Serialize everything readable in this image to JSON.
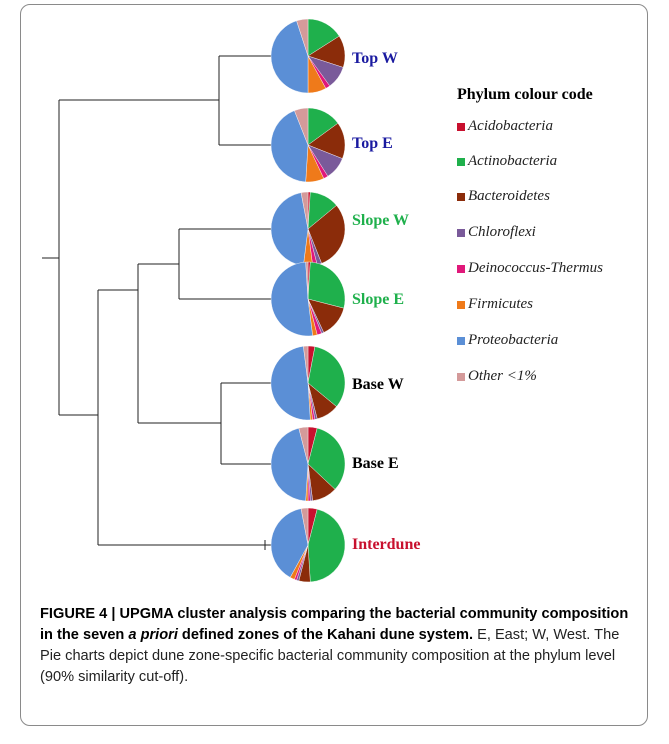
{
  "colors": {
    "Acidobacteria": "#c8102e",
    "Actinobacteria": "#1fb04c",
    "Bacteroidetes": "#8b2c0a",
    "Chloroflexi": "#7a5a9a",
    "Deinococcus-Thermus": "#e0187a",
    "Firmicutes": "#ef7a1a",
    "Proteobacteria": "#5b8fd6",
    "Other <1%": "#d49a9a"
  },
  "legend": {
    "title": "Phylum colour code",
    "items": [
      "Acidobacteria",
      "Actinobacteria",
      "Bacteroidetes",
      "Chloroflexi",
      "Deinococcus-Thermus",
      "Firmicutes",
      "Proteobacteria",
      "Other <1%"
    ]
  },
  "chart_data": {
    "type": "pie",
    "phyla": [
      "Acidobacteria",
      "Actinobacteria",
      "Bacteroidetes",
      "Chloroflexi",
      "Deinococcus-Thermus",
      "Firmicutes",
      "Proteobacteria",
      "Other <1%"
    ],
    "pies": [
      {
        "label": "Top W",
        "label_color": "#1a1aa0",
        "values": [
          0,
          16,
          14,
          10,
          2,
          8,
          45,
          5
        ]
      },
      {
        "label": "Top E",
        "label_color": "#1a1aa0",
        "values": [
          0,
          15,
          16,
          10,
          2,
          8,
          43,
          6
        ]
      },
      {
        "label": "Slope W",
        "label_color": "#1fb04c",
        "values": [
          1,
          13,
          30,
          2,
          2,
          4,
          45,
          3
        ]
      },
      {
        "label": "Slope E",
        "label_color": "#1fb04c",
        "values": [
          1,
          28,
          14,
          1,
          2,
          2,
          51,
          1
        ]
      },
      {
        "label": "Base W",
        "label_color": "#000000",
        "values": [
          3,
          33,
          10,
          1,
          1,
          1,
          49,
          2
        ]
      },
      {
        "label": "Base E",
        "label_color": "#000000",
        "values": [
          4,
          33,
          11,
          1,
          1,
          1,
          45,
          4
        ]
      },
      {
        "label": "Interdune",
        "label_color": "#c8102e",
        "values": [
          4,
          45,
          5,
          1,
          1,
          2,
          39,
          3
        ]
      }
    ]
  },
  "caption": {
    "bold_part1": "FIGURE 4 | UPGMA cluster analysis comparing the bacterial community composition in the seven ",
    "bold_italic": "a priori",
    "bold_part2": " defined zones of the Kahani dune system.",
    "rest": " E, East; W, West. The Pie charts depict dune zone-specific bacterial community composition at the phylum level (90% similarity cut-off)."
  }
}
